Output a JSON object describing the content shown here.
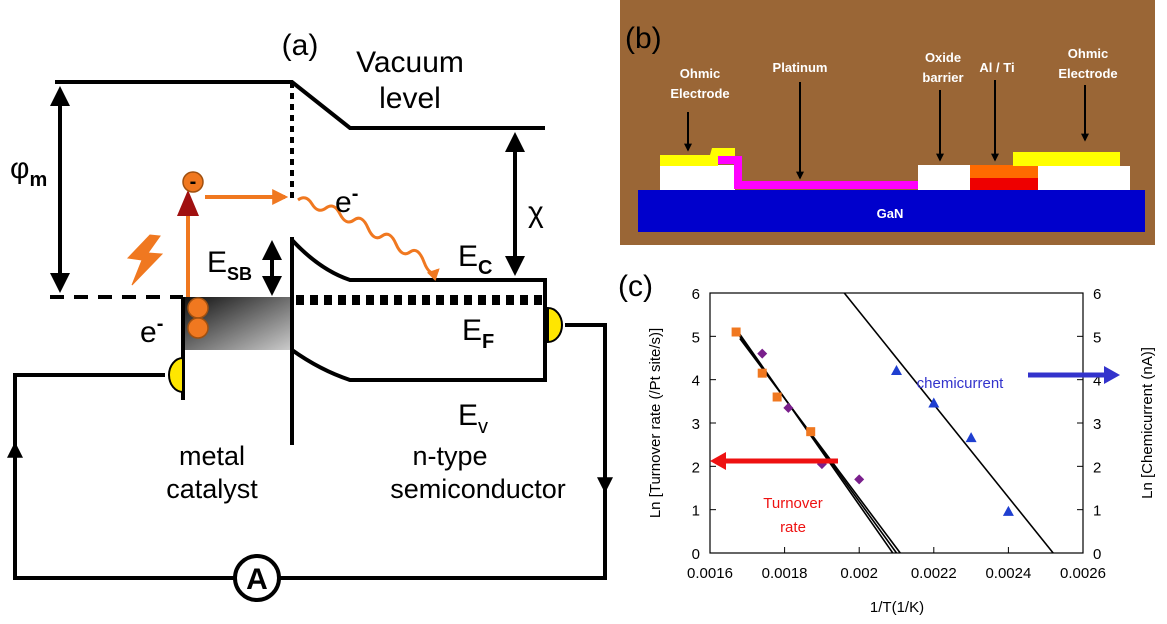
{
  "panel_a": {
    "label": "(a)",
    "vacuum_level": [
      "Vacuum",
      "level"
    ],
    "phi_m": {
      "symbol": "φ",
      "subscript": "m"
    },
    "chi": "χ",
    "charge": "-",
    "electron_top": {
      "symbol": "e",
      "superscript": "-"
    },
    "conduction_band": {
      "symbol": "E",
      "subscript": "C"
    },
    "schottky_barrier": {
      "symbol": "E",
      "subscript": "SB"
    },
    "electron_left": {
      "symbol": "e",
      "superscript": "-"
    },
    "fermi_level": {
      "symbol": "E",
      "subscript": "F"
    },
    "valence_band": {
      "symbol": "E",
      "subscript": "v"
    },
    "metal_catalyst": [
      "metal",
      "catalyst"
    ],
    "semiconductor": [
      "n-type",
      "semiconductor"
    ],
    "ammeter": "A"
  },
  "panel_b": {
    "label": "(b)",
    "left_electrode": [
      "Ohmic",
      "Electrode"
    ],
    "platinum": "Platinum",
    "oxide_barrier": [
      "Oxide",
      "barrier"
    ],
    "al_ti": "Al / Ti",
    "right_electrode": [
      "Ohmic",
      "Electrode"
    ],
    "substrate": "GaN"
  },
  "chart_data": {
    "type": "scatter",
    "panel_label": "(c)",
    "xlabel": "1/T(1/K)",
    "ylabel": "Ln [Turnover rate (/Pt site/s)]",
    "y2label": "Ln [Chemicurrent (nA)]",
    "xlim": [
      0.0016,
      0.0026
    ],
    "ylim": [
      0,
      6
    ],
    "y2lim": [
      0,
      6
    ],
    "xticks": [
      0.0016,
      0.0018,
      0.002,
      0.0022,
      0.0024,
      0.0026
    ],
    "yticks": [
      0,
      1,
      2,
      3,
      4,
      5,
      6
    ],
    "y2ticks": [
      0,
      1,
      2,
      3,
      4,
      5,
      6
    ],
    "series": [
      {
        "marker": "square",
        "color": "#f07820",
        "x": [
          0.00167,
          0.00174,
          0.00178,
          0.00187
        ],
        "values": [
          5.1,
          4.15,
          3.6,
          2.8
        ]
      },
      {
        "marker": "diamond",
        "color": "#7a1f8c",
        "x": [
          0.00174,
          0.00181,
          0.0019,
          0.002
        ],
        "values": [
          4.6,
          3.35,
          2.05,
          1.7
        ]
      },
      {
        "marker": "triangle",
        "color": "#1f3fd0",
        "axis": "y2",
        "x": [
          0.0021,
          0.0022,
          0.0023,
          0.0024
        ],
        "values": [
          4.2,
          3.45,
          2.65,
          0.95
        ]
      }
    ],
    "fits": [
      {
        "x": [
          0.00168,
          0.00209
        ],
        "values": [
          5.05,
          0
        ]
      },
      {
        "x": [
          0.00168,
          0.0021
        ],
        "values": [
          5.0,
          0
        ]
      },
      {
        "x": [
          0.00168,
          0.00211
        ],
        "values": [
          4.95,
          0
        ]
      },
      {
        "x": [
          0.00196,
          0.00252
        ],
        "values": [
          6,
          0
        ],
        "axis": "y2"
      }
    ],
    "annotations": [
      {
        "text": [
          "chemicurrent"
        ],
        "color": "#3333cc"
      },
      {
        "text": [
          "Turnover",
          "rate"
        ],
        "color": "#ee1111"
      }
    ]
  }
}
